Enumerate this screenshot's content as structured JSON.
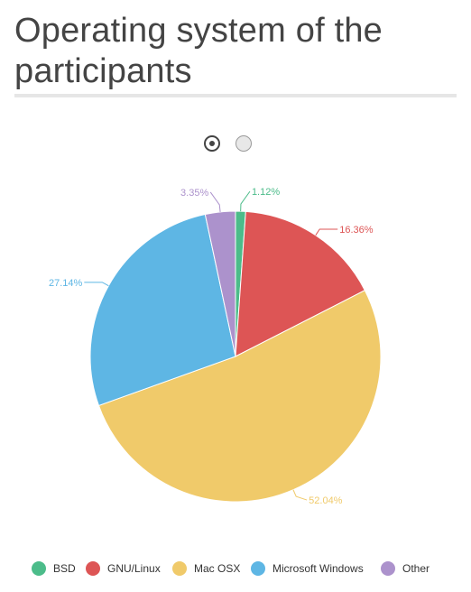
{
  "title": "Operating system of the participants",
  "pager": {
    "pages": 2,
    "active": 1
  },
  "chart_data": {
    "type": "pie",
    "categories": [
      "BSD",
      "GNU/Linux",
      "Mac OSX",
      "Microsoft Windows",
      "Other"
    ],
    "values": [
      1.12,
      16.36,
      52.04,
      27.14,
      3.35
    ],
    "labels": [
      "1.12%",
      "16.36%",
      "52.04%",
      "27.14%",
      "3.35%"
    ],
    "colors": [
      "#4cbc8a",
      "#dd5555",
      "#f0ca6a",
      "#5eb6e4",
      "#ac92cc"
    ],
    "legend_position": "bottom"
  }
}
